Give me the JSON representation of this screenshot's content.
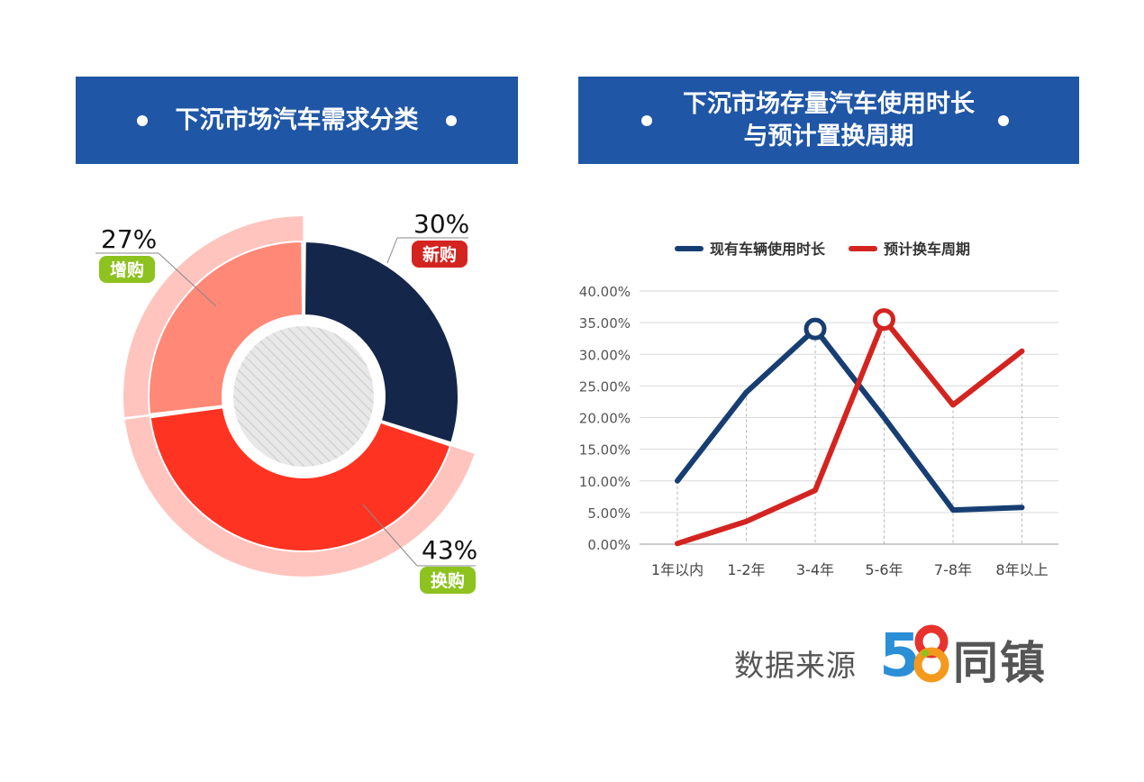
{
  "left_panel": {
    "title": "下沉市场汽车需求分类"
  },
  "right_panel": {
    "title_line1": "下沉市场存量汽车使用时长",
    "title_line2": "与预计置换周期"
  },
  "footer": {
    "source_label": "数据来源",
    "logo_number": "58",
    "logo_text": "同镇"
  },
  "colors": {
    "banner": "#1f56a6",
    "navy": "#14264a",
    "red": "#ff3322",
    "salmon": "#ff8877",
    "pink": "#ffc4bd",
    "badge_red": "#d42420",
    "badge_green": "#8dc21f",
    "line_blue": "#173e72",
    "line_red": "#d42420"
  },
  "chart_data": [
    {
      "type": "pie",
      "title": "下沉市场汽车需求分类",
      "slices": [
        {
          "label": "新购",
          "percent_label": "30%",
          "value": 30
        },
        {
          "label": "换购",
          "percent_label": "43%",
          "value": 43
        },
        {
          "label": "增购",
          "percent_label": "27%",
          "value": 27
        }
      ]
    },
    {
      "type": "line",
      "title": "下沉市场存量汽车使用时长与预计置换周期",
      "categories": [
        "1年以内",
        "1-2年",
        "3-4年",
        "5-6年",
        "7-8年",
        "8年以上"
      ],
      "yticks": [
        "0.00%",
        "5.00%",
        "10.00%",
        "15.00%",
        "20.00%",
        "25.00%",
        "30.00%",
        "35.00%",
        "40.00%"
      ],
      "ylim": [
        0,
        40
      ],
      "legend_position": "top",
      "series": [
        {
          "name": "现有车辆使用时长",
          "values": [
            10.0,
            24.0,
            34.0,
            20.0,
            5.4,
            5.8
          ],
          "peak_index": 2
        },
        {
          "name": "预计换车周期",
          "values": [
            0.1,
            3.6,
            8.5,
            35.5,
            22.0,
            30.5
          ],
          "peak_index": 3
        }
      ]
    }
  ]
}
